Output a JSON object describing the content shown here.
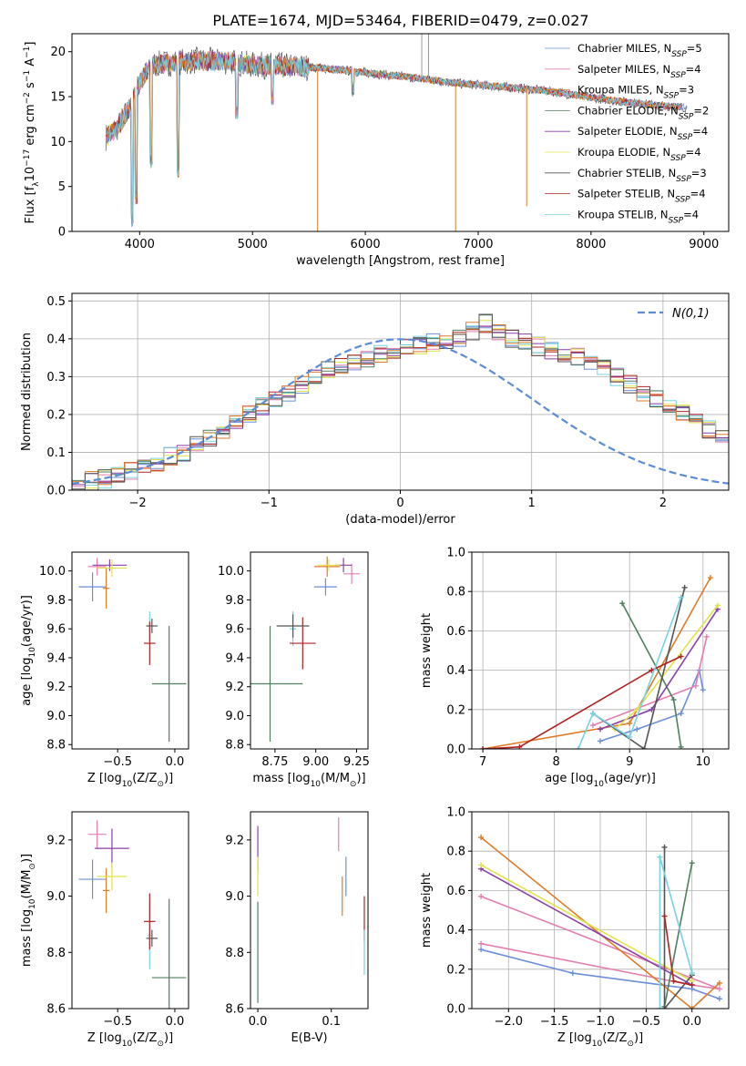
{
  "figure": {
    "title": "PLATE=1674, MJD=53464, FIBERID=0479, z=0.027"
  },
  "colors": {
    "series": [
      "#6c8fd9",
      "#e57fb0",
      "#5b9bd5",
      "#4f7f5f",
      "#8a3fa9",
      "#e0e44a",
      "#555555",
      "#b22222",
      "#78d3e0"
    ],
    "orange": "#e07b28",
    "grid": "#b0b0b0",
    "normal_curve": "#5b8cd6"
  },
  "chart_data": [
    {
      "id": "spectrum",
      "type": "line",
      "xlabel": "wavelength [Angstrom, rest frame]",
      "ylabel": "Flux [f",
      "ylabel_sub": "λ",
      "ylabel_rest": "10",
      "ylabel_exp": "−17",
      "ylabel_tail": " erg cm",
      "ylabel_exp2": "−2",
      "ylabel_tail2": " s",
      "ylabel_exp3": "−1",
      "ylabel_tail3": " A",
      "ylabel_exp4": "−1",
      "ylabel_end": "]",
      "xlim": [
        3400,
        9220
      ],
      "ylim": [
        0,
        22
      ],
      "xticks": [
        "4000",
        "5000",
        "6000",
        "7000",
        "8000",
        "9000"
      ],
      "xtick_values": [
        4000,
        5000,
        6000,
        7000,
        8000,
        9000
      ],
      "yticks": [
        "0",
        "5",
        "10",
        "15",
        "20"
      ],
      "ytick_values": [
        0,
        5,
        10,
        15,
        20
      ],
      "grid": false,
      "legend_position": "top-right",
      "legend": [
        {
          "name": "Chabrier MILES, N",
          "sub": "SSP",
          "tail": "=5"
        },
        {
          "name": "Salpeter MILES, N",
          "sub": "SSP",
          "tail": "=4"
        },
        {
          "name": "Kroupa MILES, N",
          "sub": "SSP",
          "tail": "=3"
        },
        {
          "name": "Chabrier ELODIE, N",
          "sub": "SSP",
          "tail": "=2"
        },
        {
          "name": "Salpeter ELODIE, N",
          "sub": "SSP",
          "tail": "=4"
        },
        {
          "name": "Kroupa ELODIE, N",
          "sub": "SSP",
          "tail": "=4"
        },
        {
          "name": "Chabrier STELIB, N",
          "sub": "SSP",
          "tail": "=3"
        },
        {
          "name": "Salpeter STELIB, N",
          "sub": "SSP",
          "tail": "=4"
        },
        {
          "name": "Kroupa STELIB, N",
          "sub": "SSP",
          "tail": "=4"
        }
      ],
      "continuum": [
        [
          3700,
          10.5
        ],
        [
          3800,
          11.5
        ],
        [
          3900,
          13.5
        ],
        [
          4000,
          16.5
        ],
        [
          4100,
          18.5
        ],
        [
          4300,
          18.8
        ],
        [
          4500,
          19.0
        ],
        [
          4800,
          18.9
        ],
        [
          5000,
          18.5
        ],
        [
          5300,
          18.4
        ],
        [
          5600,
          18.2
        ],
        [
          5900,
          17.8
        ],
        [
          6200,
          17.4
        ],
        [
          6500,
          17.0
        ],
        [
          6800,
          16.5
        ],
        [
          7100,
          16.2
        ],
        [
          7400,
          15.9
        ],
        [
          7700,
          15.5
        ],
        [
          8000,
          14.9
        ],
        [
          8300,
          14.4
        ],
        [
          8600,
          14.0
        ],
        [
          8850,
          13.8
        ]
      ],
      "dips": [
        [
          3934,
          0.5
        ],
        [
          3968,
          3.0
        ],
        [
          4101,
          7.0
        ],
        [
          4340,
          6.0
        ],
        [
          4861,
          12.5
        ],
        [
          5175,
          14.0
        ],
        [
          5890,
          15.0
        ]
      ],
      "spikes": [
        [
          5577,
          0.0
        ],
        [
          6800,
          0.0
        ],
        [
          7430,
          2.8
        ],
        [
          6500,
          22.0
        ],
        [
          6560,
          22.0
        ]
      ]
    },
    {
      "id": "residual_hist",
      "type": "bar",
      "xlabel": "(data-model)/error",
      "ylabel": "Normed distribution",
      "xlim": [
        -2.5,
        2.5
      ],
      "ylim": [
        0,
        0.52
      ],
      "xticks": [
        "−2",
        "−1",
        "0",
        "1",
        "2"
      ],
      "xtick_values": [
        -2,
        -1,
        0,
        1,
        2
      ],
      "yticks": [
        "0.0",
        "0.1",
        "0.2",
        "0.3",
        "0.4",
        "0.5"
      ],
      "ytick_values": [
        0,
        0.1,
        0.2,
        0.3,
        0.4,
        0.5
      ],
      "grid": true,
      "legend_position": "top-right",
      "legend_label": "N(0,1)",
      "bin_width": 0.1,
      "histogram": [
        0.02,
        0.025,
        0.03,
        0.04,
        0.05,
        0.06,
        0.075,
        0.09,
        0.1,
        0.12,
        0.14,
        0.16,
        0.18,
        0.2,
        0.22,
        0.24,
        0.26,
        0.28,
        0.3,
        0.32,
        0.33,
        0.34,
        0.35,
        0.36,
        0.37,
        0.38,
        0.385,
        0.39,
        0.395,
        0.4,
        0.42,
        0.44,
        0.42,
        0.4,
        0.39,
        0.38,
        0.37,
        0.36,
        0.35,
        0.34,
        0.33,
        0.3,
        0.28,
        0.26,
        0.24,
        0.22,
        0.2,
        0.18,
        0.16,
        0.14
      ]
    },
    {
      "id": "age_vs_Z",
      "type": "scatter",
      "xlabel": "Z [log",
      "xlabel_sub": "10",
      "xlabel_tail": "(Z/Z",
      "xlabel_sub2": "⊙",
      "xlabel_end": ")]",
      "ylabel": "age  [log",
      "ylabel_sub": "10",
      "ylabel_tail": "(age/yr)]",
      "xlim": [
        -0.9,
        0.12
      ],
      "ylim": [
        8.77,
        10.13
      ],
      "xticks": [
        "−0.5",
        "0.0"
      ],
      "xtick_values": [
        -0.5,
        0.0
      ],
      "yticks": [
        "8.8",
        "9.0",
        "9.2",
        "9.4",
        "9.6",
        "9.8",
        "10.0"
      ],
      "ytick_values": [
        8.8,
        9.0,
        9.2,
        9.4,
        9.6,
        9.8,
        10.0
      ],
      "grid": false,
      "points": [
        {
          "x": -0.72,
          "y": 9.89,
          "xerr": 0.12,
          "yerr": 0.1,
          "c": 0
        },
        {
          "x": -0.68,
          "y": 10.03,
          "xerr": 0.08,
          "yerr": 0.06,
          "c": 1
        },
        {
          "x": -0.6,
          "y": 9.88,
          "xerr": 0.03,
          "yerr": 0.14,
          "c": 9
        },
        {
          "x": -0.57,
          "y": 10.04,
          "xerr": 0.15,
          "yerr": 0.04,
          "c": 4
        },
        {
          "x": -0.55,
          "y": 10.02,
          "xerr": 0.13,
          "yerr": 0.06,
          "c": 5
        },
        {
          "x": -0.22,
          "y": 9.62,
          "xerr": 0.02,
          "yerr": 0.1,
          "c": 8
        },
        {
          "x": -0.22,
          "y": 9.5,
          "xerr": 0.05,
          "yerr": 0.15,
          "c": 7
        },
        {
          "x": -0.2,
          "y": 9.62,
          "xerr": 0.05,
          "yerr": 0.05,
          "c": 6
        },
        {
          "x": -0.05,
          "y": 9.22,
          "xerr": 0.15,
          "yerr": 0.4,
          "c": 3
        }
      ]
    },
    {
      "id": "age_vs_mass",
      "type": "scatter",
      "xlabel": "mass [log",
      "xlabel_sub": "10",
      "xlabel_tail": "(M/M",
      "xlabel_sub2": "⊙",
      "xlabel_end": ")]",
      "ylim": [
        8.77,
        10.13
      ],
      "xlim": [
        8.6,
        9.32
      ],
      "xticks": [
        "8.75",
        "9.00",
        "9.25"
      ],
      "xtick_values": [
        8.75,
        9.0,
        9.25
      ],
      "yticks": [
        "8.8",
        "9.0",
        "9.2",
        "9.4",
        "9.6",
        "9.8",
        "10.0"
      ],
      "ytick_values": [
        8.8,
        9.0,
        9.2,
        9.4,
        9.6,
        9.8,
        10.0
      ],
      "grid": false,
      "points": [
        {
          "x": 9.06,
          "y": 9.89,
          "xerr": 0.07,
          "yerr": 0.06,
          "c": 0
        },
        {
          "x": 9.22,
          "y": 9.98,
          "xerr": 0.05,
          "yerr": 0.07,
          "c": 1
        },
        {
          "x": 9.07,
          "y": 10.03,
          "xerr": 0.08,
          "yerr": 0.07,
          "c": 9
        },
        {
          "x": 9.17,
          "y": 10.04,
          "xerr": 0.05,
          "yerr": 0.05,
          "c": 4
        },
        {
          "x": 9.08,
          "y": 10.04,
          "xerr": 0.07,
          "yerr": 0.04,
          "c": 5
        },
        {
          "x": 8.86,
          "y": 9.6,
          "xerr": 0.02,
          "yerr": 0.12,
          "c": 8
        },
        {
          "x": 8.92,
          "y": 9.5,
          "xerr": 0.08,
          "yerr": 0.18,
          "c": 7
        },
        {
          "x": 8.86,
          "y": 9.62,
          "xerr": 0.1,
          "yerr": 0.08,
          "c": 6
        },
        {
          "x": 8.72,
          "y": 9.22,
          "xerr": 0.2,
          "yerr": 0.4,
          "c": 3
        }
      ]
    },
    {
      "id": "weight_vs_age",
      "type": "line",
      "xlabel": "age  [log",
      "xlabel_sub": "10",
      "xlabel_tail": "(age/yr)]",
      "ylabel": "mass weight",
      "xlim": [
        6.85,
        10.35
      ],
      "ylim": [
        0,
        1
      ],
      "xticks": [
        "7",
        "8",
        "9",
        "10"
      ],
      "xtick_values": [
        7,
        8,
        9,
        10
      ],
      "yticks": [
        "0.0",
        "0.2",
        "0.4",
        "0.6",
        "0.8",
        "1.0"
      ],
      "ytick_values": [
        0,
        0.2,
        0.4,
        0.6,
        0.8,
        1.0
      ],
      "grid": true,
      "series": [
        {
          "c": 0,
          "pts": [
            [
              8.6,
              0.04
            ],
            [
              9.1,
              0.1
            ],
            [
              9.7,
              0.18
            ],
            [
              9.95,
              0.4
            ],
            [
              10.0,
              0.3
            ]
          ]
        },
        {
          "c": 1,
          "pts": [
            [
              8.5,
              0.12
            ],
            [
              9.9,
              0.32
            ],
            [
              10.05,
              0.57
            ]
          ]
        },
        {
          "c": 9,
          "pts": [
            [
              7.0,
              0.0
            ],
            [
              9.0,
              0.13
            ],
            [
              10.1,
              0.87
            ]
          ]
        },
        {
          "c": 3,
          "pts": [
            [
              8.9,
              0.74
            ],
            [
              9.6,
              0.25
            ],
            [
              9.7,
              0.01
            ]
          ]
        },
        {
          "c": 4,
          "pts": [
            [
              8.6,
              0.1
            ],
            [
              9.3,
              0.2
            ],
            [
              10.2,
              0.71
            ]
          ]
        },
        {
          "c": 5,
          "pts": [
            [
              8.8,
              0.1
            ],
            [
              9.1,
              0.2
            ],
            [
              10.2,
              0.73
            ]
          ]
        },
        {
          "c": 6,
          "pts": [
            [
              8.5,
              0.18
            ],
            [
              9.2,
              0.0
            ],
            [
              9.75,
              0.82
            ]
          ]
        },
        {
          "c": 7,
          "pts": [
            [
              7.0,
              0.0
            ],
            [
              7.5,
              0.01
            ],
            [
              9.3,
              0.4
            ],
            [
              9.7,
              0.47
            ]
          ]
        },
        {
          "c": 8,
          "pts": [
            [
              8.3,
              0.0
            ],
            [
              8.5,
              0.18
            ],
            [
              9.0,
              0.06
            ],
            [
              9.7,
              0.77
            ]
          ]
        }
      ]
    },
    {
      "id": "mass_vs_Z",
      "type": "scatter",
      "xlabel": "Z [log",
      "xlabel_sub": "10",
      "xlabel_tail": "(Z/Z",
      "xlabel_sub2": "⊙",
      "xlabel_end": ")]",
      "ylabel": "mass [log",
      "ylabel_sub": "10",
      "ylabel_tail": "(M/M",
      "ylabel_sub2": "⊙",
      "ylabel_end": ")]",
      "xlim": [
        -0.9,
        0.12
      ],
      "ylim": [
        8.6,
        9.3
      ],
      "xticks": [
        "−0.5",
        "0.0"
      ],
      "xtick_values": [
        -0.5,
        0.0
      ],
      "yticks": [
        "8.6",
        "8.8",
        "9.0",
        "9.2"
      ],
      "ytick_values": [
        8.6,
        8.8,
        9.0,
        9.2
      ],
      "grid": false,
      "points": [
        {
          "x": -0.72,
          "y": 9.06,
          "xerr": 0.12,
          "yerr": 0.07,
          "c": 0
        },
        {
          "x": -0.68,
          "y": 9.22,
          "xerr": 0.08,
          "yerr": 0.05,
          "c": 1
        },
        {
          "x": -0.6,
          "y": 9.02,
          "xerr": 0.03,
          "yerr": 0.08,
          "c": 9
        },
        {
          "x": -0.55,
          "y": 9.17,
          "xerr": 0.15,
          "yerr": 0.07,
          "c": 4
        },
        {
          "x": -0.55,
          "y": 9.07,
          "xerr": 0.13,
          "yerr": 0.05,
          "c": 5
        },
        {
          "x": -0.22,
          "y": 8.86,
          "xerr": 0.02,
          "yerr": 0.12,
          "c": 8
        },
        {
          "x": -0.22,
          "y": 8.91,
          "xerr": 0.05,
          "yerr": 0.1,
          "c": 7
        },
        {
          "x": -0.2,
          "y": 8.85,
          "xerr": 0.05,
          "yerr": 0.03,
          "c": 6
        },
        {
          "x": -0.05,
          "y": 8.71,
          "xerr": 0.15,
          "yerr": 0.28,
          "c": 3
        }
      ]
    },
    {
      "id": "mass_vs_ebv",
      "type": "scatter",
      "xlabel": "E(B-V)",
      "xlim": [
        -0.01,
        0.15
      ],
      "ylim": [
        8.6,
        9.3
      ],
      "xticks": [
        "0.0",
        "0.1"
      ],
      "xtick_values": [
        0.0,
        0.1
      ],
      "yticks": [
        "8.6",
        "8.8",
        "9.0",
        "9.2"
      ],
      "ytick_values": [
        8.6,
        8.8,
        9.0,
        9.2
      ],
      "grid": false,
      "points": [
        {
          "x": 0.0,
          "y": 9.17,
          "xerr": 0.0,
          "yerr": 0.08,
          "c": 4
        },
        {
          "x": 0.0,
          "y": 9.07,
          "xerr": 0.0,
          "yerr": 0.07,
          "c": 5
        },
        {
          "x": 0.0,
          "y": 8.8,
          "xerr": 0.0,
          "yerr": 0.18,
          "c": 3
        },
        {
          "x": 0.11,
          "y": 9.22,
          "xerr": 0.0,
          "yerr": 0.06,
          "c": 1
        },
        {
          "x": 0.115,
          "y": 9.0,
          "xerr": 0.0,
          "yerr": 0.07,
          "c": 9
        },
        {
          "x": 0.12,
          "y": 9.07,
          "xerr": 0.0,
          "yerr": 0.07,
          "c": 0
        },
        {
          "x": 0.145,
          "y": 8.92,
          "xerr": 0.0,
          "yerr": 0.08,
          "c": 7
        },
        {
          "x": 0.145,
          "y": 8.8,
          "xerr": 0.0,
          "yerr": 0.08,
          "c": 8
        }
      ]
    },
    {
      "id": "weight_vs_Z",
      "type": "line",
      "xlabel": "Z [log",
      "xlabel_sub": "10",
      "xlabel_tail": "(Z/Z",
      "xlabel_sub2": "⊙",
      "xlabel_end": ")]",
      "ylabel": "mass weight",
      "xlim": [
        -2.4,
        0.4
      ],
      "ylim": [
        0,
        1
      ],
      "xticks": [
        "−2.0",
        "−1.5",
        "−1.0",
        "−0.5",
        "0.0"
      ],
      "xtick_values": [
        -2.0,
        -1.5,
        -1.0,
        -0.5,
        0.0
      ],
      "yticks": [
        "0.0",
        "0.2",
        "0.4",
        "0.6",
        "0.8",
        "1.0"
      ],
      "ytick_values": [
        0,
        0.2,
        0.4,
        0.6,
        0.8,
        1.0
      ],
      "grid": true,
      "series": [
        {
          "c": 0,
          "pts": [
            [
              -2.3,
              0.3
            ],
            [
              -1.3,
              0.18
            ],
            [
              0.0,
              0.1
            ],
            [
              0.3,
              0.05
            ]
          ]
        },
        {
          "c": 1,
          "pts": [
            [
              -2.3,
              0.33
            ],
            [
              0.0,
              0.12
            ],
            [
              0.3,
              0.1
            ],
            [
              -2.3,
              0.57
            ]
          ]
        },
        {
          "c": 9,
          "pts": [
            [
              -2.3,
              0.87
            ],
            [
              0.0,
              0.0
            ],
            [
              0.3,
              0.13
            ]
          ]
        },
        {
          "c": 3,
          "pts": [
            [
              -0.3,
              0.01
            ],
            [
              0.0,
              0.74
            ]
          ]
        },
        {
          "c": 4,
          "pts": [
            [
              -2.3,
              0.71
            ],
            [
              0.0,
              0.12
            ]
          ]
        },
        {
          "c": 5,
          "pts": [
            [
              -2.3,
              0.73
            ],
            [
              0.0,
              0.14
            ]
          ]
        },
        {
          "c": 6,
          "pts": [
            [
              -0.3,
              0.82
            ],
            [
              -0.3,
              0.0
            ],
            [
              0.0,
              0.17
            ]
          ]
        },
        {
          "c": 7,
          "pts": [
            [
              -0.3,
              0.47
            ],
            [
              -0.2,
              0.14
            ],
            [
              0.0,
              0.12
            ]
          ]
        },
        {
          "c": 8,
          "pts": [
            [
              -0.35,
              0.0
            ],
            [
              -0.35,
              0.77
            ],
            [
              0.0,
              0.18
            ]
          ]
        }
      ]
    }
  ]
}
